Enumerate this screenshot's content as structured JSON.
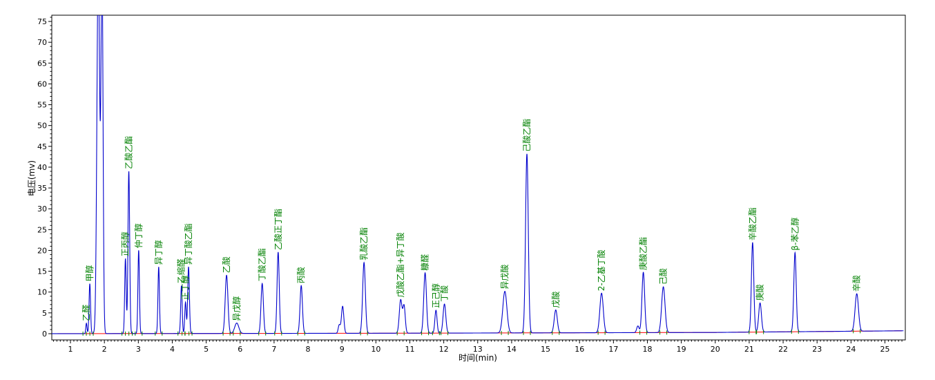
{
  "chart_data": {
    "type": "line",
    "xlabel": "时间(min)",
    "ylabel": "电压(mv)",
    "xlim": [
      0.45,
      25.6
    ],
    "ylim": [
      -1.5,
      76.5
    ],
    "xticks": [
      1,
      2,
      3,
      4,
      5,
      6,
      7,
      8,
      9,
      10,
      11,
      12,
      13,
      14,
      15,
      16,
      17,
      18,
      19,
      20,
      21,
      22,
      23,
      24,
      25
    ],
    "yticks": [
      0,
      5,
      10,
      15,
      20,
      25,
      30,
      35,
      40,
      45,
      50,
      55,
      60,
      65,
      70,
      75
    ],
    "grid": false,
    "colors": {
      "trace": "#0000cc",
      "baseline": "#ff0000",
      "label": "#008000"
    },
    "baseline": [
      [
        0.45,
        0.0
      ],
      [
        10,
        0.1
      ],
      [
        20,
        0.3
      ],
      [
        25.55,
        0.7
      ]
    ],
    "peaks": [
      {
        "name": "乙醛",
        "t": 1.47,
        "h": 2.5,
        "w": 0.018
      },
      {
        "name": "甲醇",
        "t": 1.57,
        "h": 12.0,
        "w": 0.022
      },
      {
        "name": "",
        "t": 1.82,
        "h": 90.0,
        "w": 0.04
      },
      {
        "name": "",
        "t": 1.93,
        "h": 88.0,
        "w": 0.03
      },
      {
        "name": "正丙醇",
        "t": 2.62,
        "h": 18.0,
        "w": 0.022
      },
      {
        "name": "乙酸乙酯",
        "t": 2.72,
        "h": 39.0,
        "w": 0.025
      },
      {
        "name": "仲丁醇",
        "t": 3.01,
        "h": 20.0,
        "w": 0.022
      },
      {
        "name": "异丁醇",
        "t": 3.6,
        "h": 16.0,
        "w": 0.022
      },
      {
        "name": "乙缩醛",
        "t": 4.27,
        "h": 11.5,
        "w": 0.022
      },
      {
        "name": "正丁醇",
        "t": 4.39,
        "h": 7.5,
        "w": 0.022
      },
      {
        "name": "异丁酸乙酯",
        "t": 4.48,
        "h": 16.0,
        "w": 0.025
      },
      {
        "name": "乙酸",
        "t": 5.6,
        "h": 14.0,
        "w": 0.04
      },
      {
        "name": "异戊醇",
        "t": 5.9,
        "h": 2.5,
        "w": 0.06
      },
      {
        "name": "丁酸乙酯",
        "t": 6.65,
        "h": 12.0,
        "w": 0.035
      },
      {
        "name": "乙酸正丁酯",
        "t": 7.12,
        "h": 19.5,
        "w": 0.032
      },
      {
        "name": "丙酸",
        "t": 7.8,
        "h": 11.5,
        "w": 0.035
      },
      {
        "name": "",
        "t": 8.92,
        "h": 2.0,
        "w": 0.03
      },
      {
        "name": "",
        "t": 9.02,
        "h": 6.5,
        "w": 0.035
      },
      {
        "name": "乳酸乙酯",
        "t": 9.65,
        "h": 17.0,
        "w": 0.04
      },
      {
        "name": "戊酸乙酯+异丁酸",
        "t": 10.73,
        "h": 8.0,
        "w": 0.04
      },
      {
        "name": "",
        "t": 10.83,
        "h": 6.5,
        "w": 0.035
      },
      {
        "name": "糠醛",
        "t": 11.45,
        "h": 14.5,
        "w": 0.04
      },
      {
        "name": "正己醇",
        "t": 11.77,
        "h": 5.5,
        "w": 0.032
      },
      {
        "name": "丁酸",
        "t": 12.02,
        "h": 7.0,
        "w": 0.04
      },
      {
        "name": "异戊酸",
        "t": 13.8,
        "h": 10.0,
        "w": 0.06
      },
      {
        "name": "己酸乙酯",
        "t": 14.45,
        "h": 43.0,
        "w": 0.04
      },
      {
        "name": "戊酸",
        "t": 15.3,
        "h": 5.5,
        "w": 0.045
      },
      {
        "name": "2-乙基丁酸",
        "t": 16.65,
        "h": 9.5,
        "w": 0.05
      },
      {
        "name": "",
        "t": 17.72,
        "h": 1.6,
        "w": 0.035
      },
      {
        "name": "庚酸乙酯",
        "t": 17.88,
        "h": 14.5,
        "w": 0.04
      },
      {
        "name": "己酸",
        "t": 18.47,
        "h": 11.0,
        "w": 0.05
      },
      {
        "name": "辛酸乙酯",
        "t": 21.1,
        "h": 21.5,
        "w": 0.035
      },
      {
        "name": "庚酸",
        "t": 21.32,
        "h": 7.0,
        "w": 0.04
      },
      {
        "name": "β-苯乙醇",
        "t": 22.35,
        "h": 19.0,
        "w": 0.035
      },
      {
        "name": "辛酸",
        "t": 24.17,
        "h": 9.0,
        "w": 0.05
      }
    ]
  }
}
